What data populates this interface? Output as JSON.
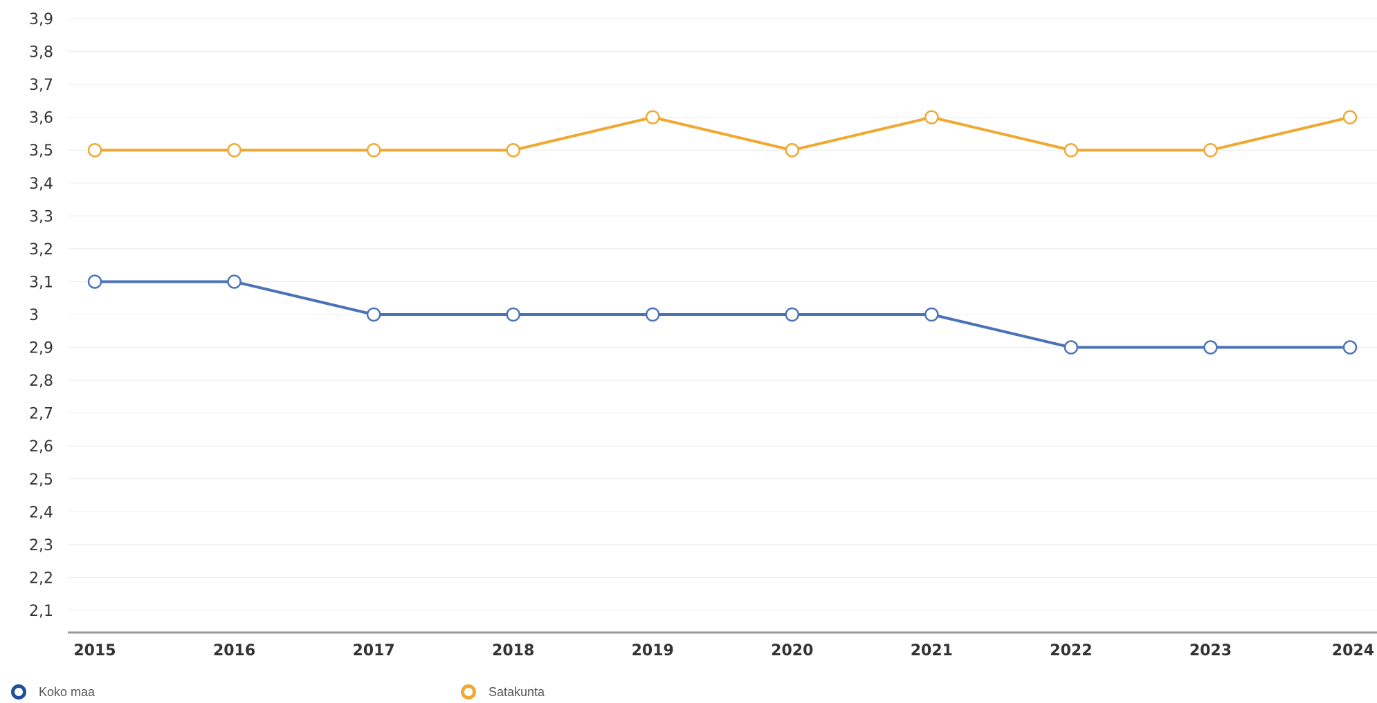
{
  "chart_data": {
    "type": "line",
    "title": "",
    "xlabel": "",
    "ylabel": "",
    "x": [
      "2015",
      "2016",
      "2017",
      "2018",
      "2019",
      "2020",
      "2021",
      "2022",
      "2023",
      "2024"
    ],
    "ylim": [
      2.0,
      3.9
    ],
    "y_ticks": [
      "3,9",
      "3,8",
      "3,7",
      "3,6",
      "3,5",
      "3,4",
      "3,3",
      "3,2",
      "3,1",
      "3",
      "2,9",
      "2,8",
      "2,7",
      "2,6",
      "2,5",
      "2,4",
      "2,3",
      "2,2",
      "2,1"
    ],
    "y_tick_values": [
      3.9,
      3.8,
      3.7,
      3.6,
      3.5,
      3.4,
      3.3,
      3.2,
      3.1,
      3.0,
      2.9,
      2.8,
      2.7,
      2.6,
      2.5,
      2.4,
      2.3,
      2.2,
      2.1
    ],
    "grid": true,
    "legend_position": "bottom-left",
    "series": [
      {
        "name": "Koko maa",
        "color": "#4a72b8",
        "values": [
          3.1,
          3.1,
          3.0,
          3.0,
          3.0,
          3.0,
          3.0,
          2.9,
          2.9,
          2.9
        ]
      },
      {
        "name": "Satakunta",
        "color": "#f0a830",
        "values": [
          3.5,
          3.5,
          3.5,
          3.5,
          3.6,
          3.5,
          3.6,
          3.5,
          3.5,
          3.6
        ]
      }
    ]
  },
  "legend": {
    "items": [
      {
        "label": "Koko maa",
        "color": "#1f4e9c"
      },
      {
        "label": "Satakunta",
        "color": "#f0a830"
      }
    ]
  }
}
